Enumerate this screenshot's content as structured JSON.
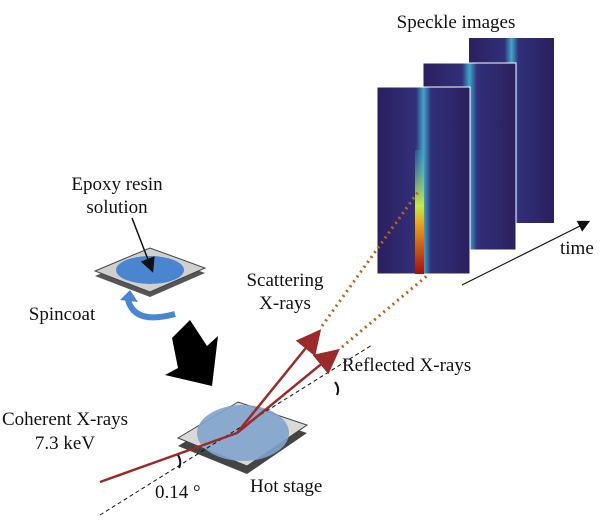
{
  "speckle": {
    "title": "Speckle images",
    "time": "time"
  },
  "sample": {
    "line1": "Epoxy resin",
    "line2": "solution",
    "spincoat": "Spincoat"
  },
  "beams": {
    "incident_line1": "Coherent X-rays",
    "incident_line2": "7.3 keV",
    "scattering_line1": "Scattering",
    "scattering_line2": "X-rays",
    "reflected": "Reflected X-rays",
    "angle": "0.14 °"
  },
  "stage": {
    "label": "Hot stage"
  }
}
